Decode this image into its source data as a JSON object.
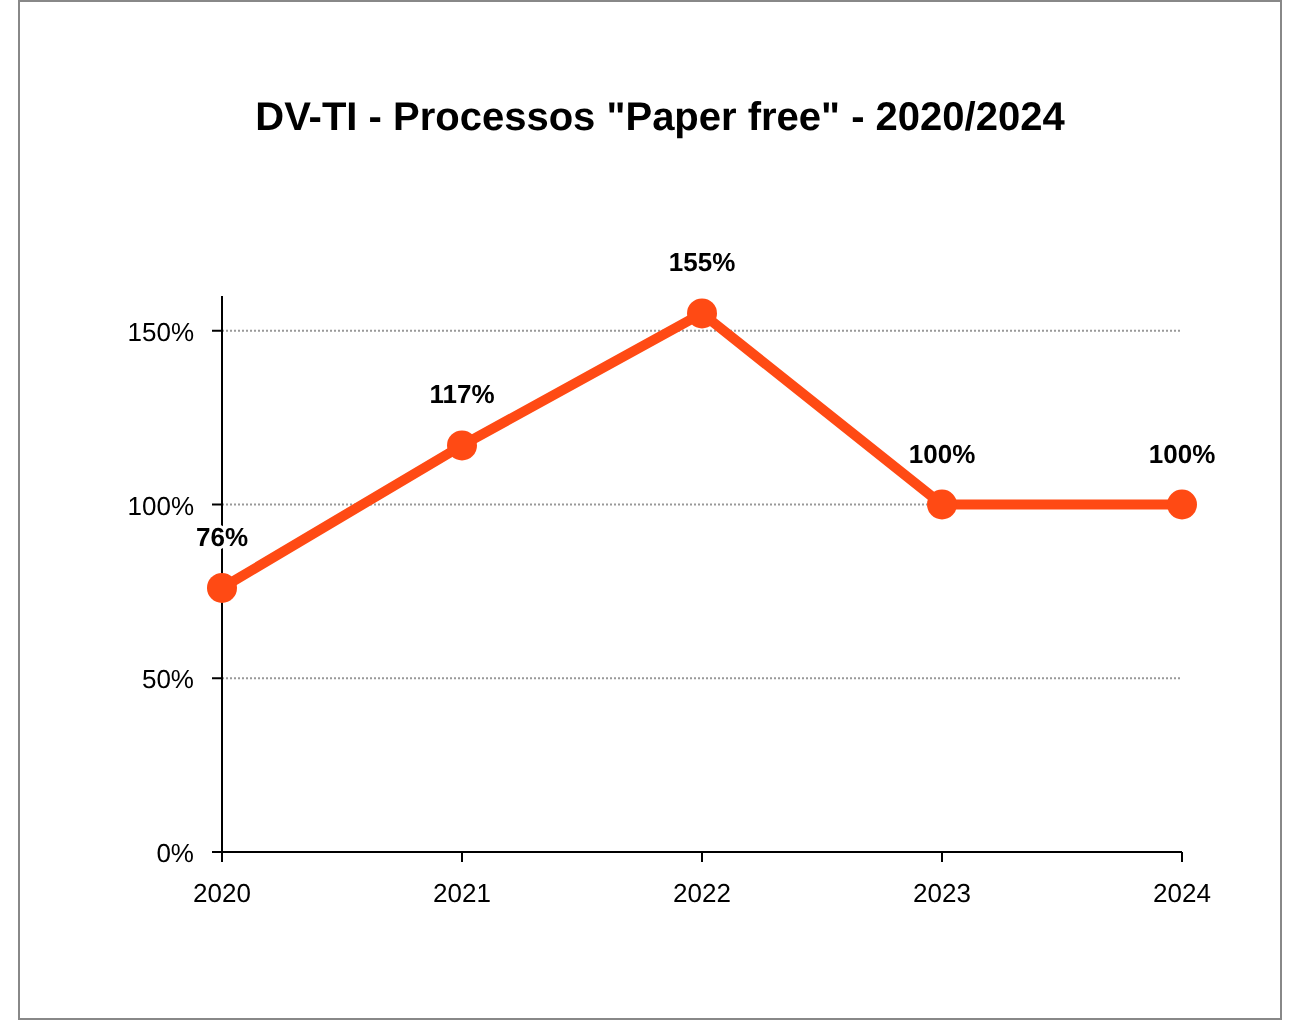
{
  "chart_data": {
    "type": "line",
    "title": "DV-TI - Processos \"Paper free\" - 2020/2024",
    "x": [
      2020,
      2021,
      2022,
      2023,
      2024
    ],
    "series": [
      {
        "color": "#ff4a14",
        "values": [
          76,
          117,
          155,
          100,
          100
        ],
        "value_labels": [
          "76%",
          "117%",
          "155%",
          "100%",
          "100%"
        ]
      }
    ],
    "xlim": [
      2020,
      2024
    ],
    "xticks": [
      2020,
      2021,
      2022,
      2023,
      2024
    ],
    "ylim": [
      0,
      160
    ],
    "yticks": [
      {
        "value": 0,
        "label": "0%"
      },
      {
        "value": 50,
        "label": "50%"
      },
      {
        "value": 100,
        "label": "100%"
      },
      {
        "value": 150,
        "label": "150%"
      }
    ],
    "grid": "y",
    "marker": "circle",
    "line_style": "solid"
  }
}
